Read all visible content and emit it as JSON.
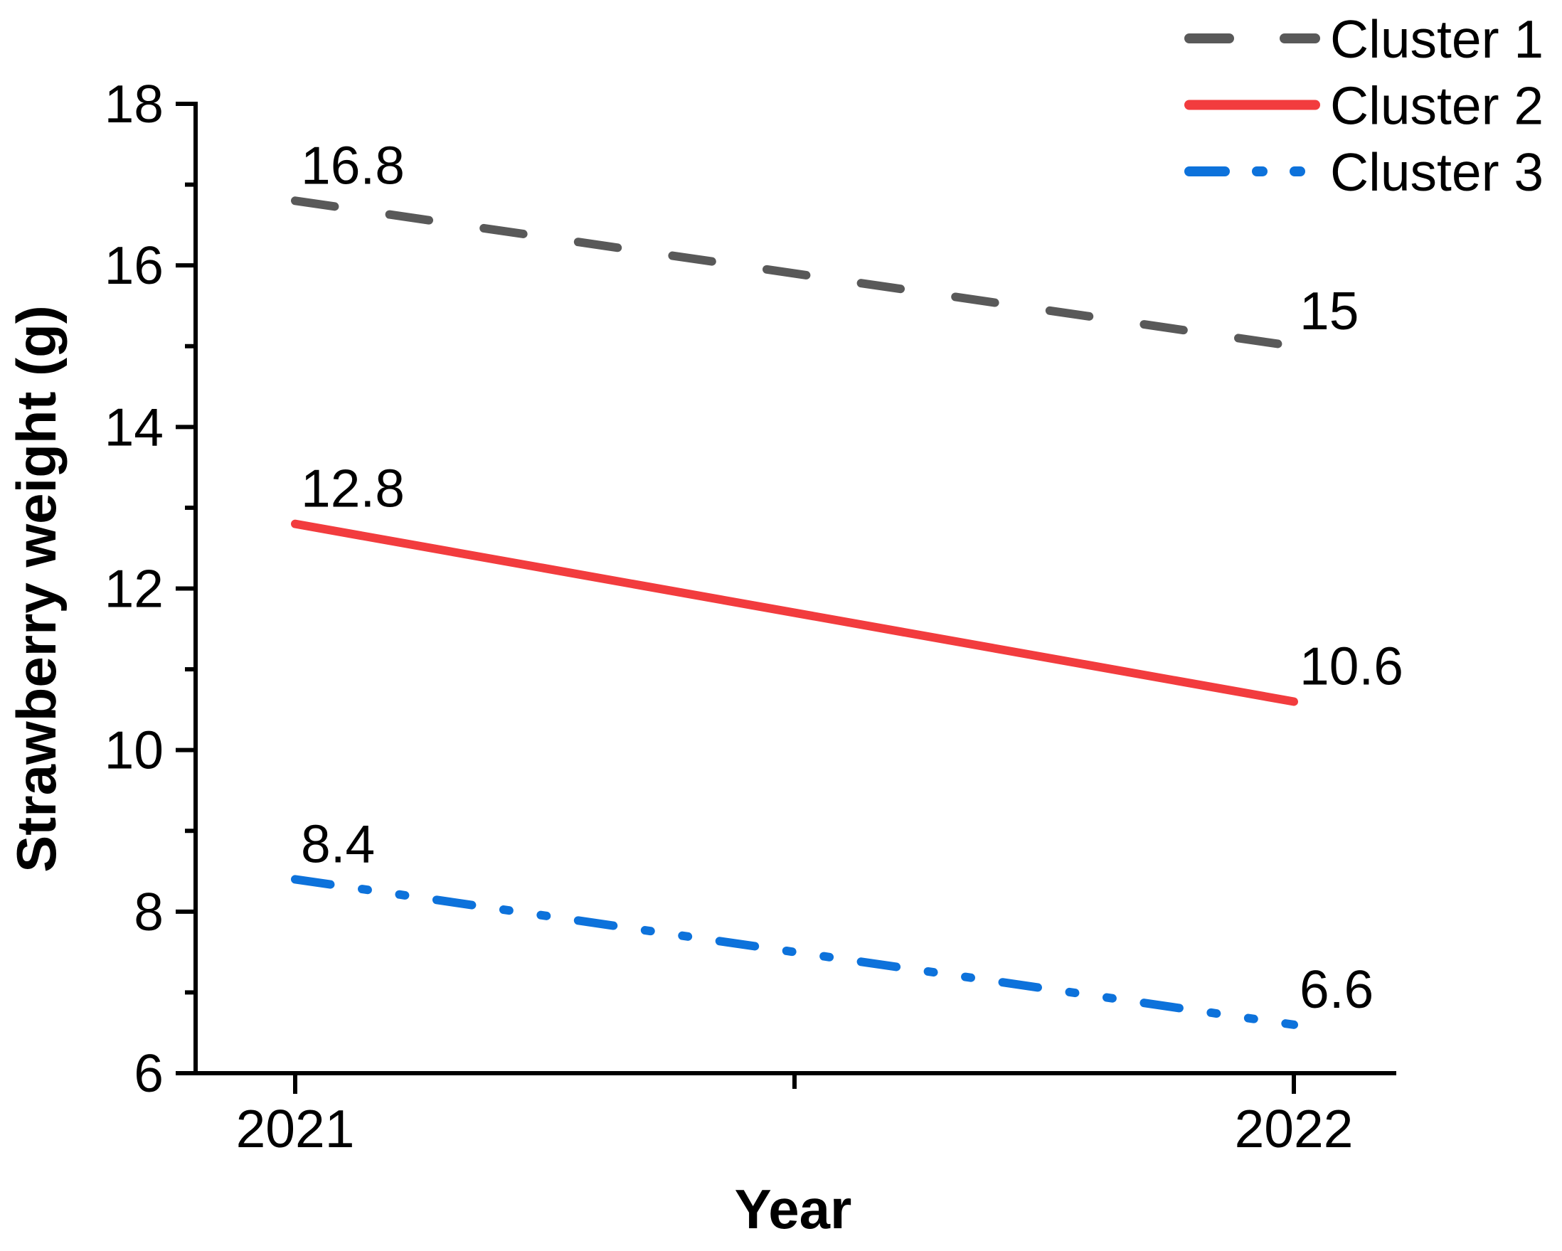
{
  "chart_data": {
    "type": "line",
    "title": "",
    "xlabel": "Year",
    "ylabel": "Strawberry weight (g)",
    "x": [
      2021,
      2022
    ],
    "xtick_labels": [
      "2021",
      "2022"
    ],
    "xticks_minor": [
      2021.5
    ],
    "ylim": [
      6,
      18
    ],
    "yticks_major": [
      6,
      8,
      10,
      12,
      14,
      16,
      18
    ],
    "ytick_labels": [
      "6",
      "8",
      "10",
      "12",
      "14",
      "16",
      "18"
    ],
    "yticks_minor": [
      7,
      9,
      11,
      13,
      15,
      17
    ],
    "grid": false,
    "legend_position": "top-right",
    "series": [
      {
        "name": "Cluster 1",
        "values": [
          16.8,
          15
        ],
        "point_labels": [
          "16.8",
          "15"
        ],
        "color": "#595959",
        "style": "dashed"
      },
      {
        "name": "Cluster 2",
        "values": [
          12.8,
          10.6
        ],
        "point_labels": [
          "12.8",
          "10.6"
        ],
        "color": "#F23C3E",
        "style": "solid"
      },
      {
        "name": "Cluster 3",
        "values": [
          8.4,
          6.6
        ],
        "point_labels": [
          "8.4",
          "6.6"
        ],
        "color": "#0D72DB",
        "style": "dash-dot-dot"
      }
    ]
  }
}
